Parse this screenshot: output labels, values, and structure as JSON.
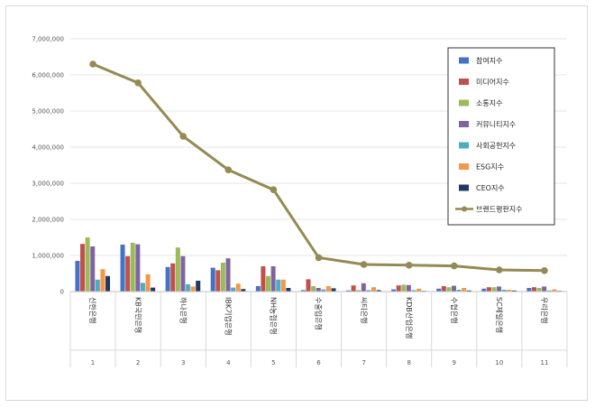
{
  "chart_data": {
    "type": "bar",
    "ylim": [
      0,
      7000000
    ],
    "y_ticks": [
      "0",
      "1,000,000",
      "2,000,000",
      "3,000,000",
      "4,000,000",
      "5,000,000",
      "6,000,000",
      "7,000,000"
    ],
    "categories": [
      "신한은행",
      "KB국민은행",
      "하나은행",
      "IBK기업은행",
      "NH농협은행",
      "수출입은행",
      "씨티은행",
      "KDB산업은행",
      "수협은행",
      "SC제일은행",
      "우리은행"
    ],
    "numbers": [
      "1",
      "2",
      "3",
      "4",
      "5",
      "6",
      "7",
      "8",
      "9",
      "10",
      "11"
    ],
    "legend_position": "top-right",
    "series": [
      {
        "name": "참여지수",
        "color": "#4472c4",
        "kind": "bar",
        "values": [
          850000,
          1300000,
          680000,
          660000,
          150000,
          40000,
          30000,
          60000,
          80000,
          80000,
          100000
        ]
      },
      {
        "name": "미디어지수",
        "color": "#c0504d",
        "kind": "bar",
        "values": [
          1320000,
          980000,
          780000,
          590000,
          700000,
          340000,
          170000,
          170000,
          150000,
          120000,
          120000
        ]
      },
      {
        "name": "소통지수",
        "color": "#9bbb59",
        "kind": "bar",
        "values": [
          1500000,
          1350000,
          1220000,
          800000,
          430000,
          150000,
          40000,
          190000,
          120000,
          120000,
          100000
        ]
      },
      {
        "name": "커뮤니티지수",
        "color": "#8064a2",
        "kind": "bar",
        "values": [
          1250000,
          1310000,
          980000,
          920000,
          700000,
          100000,
          230000,
          180000,
          160000,
          140000,
          140000
        ]
      },
      {
        "name": "사회공헌지수",
        "color": "#4bacc6",
        "kind": "bar",
        "values": [
          330000,
          240000,
          200000,
          110000,
          330000,
          60000,
          40000,
          40000,
          50000,
          50000,
          30000
        ]
      },
      {
        "name": "ESG지수",
        "color": "#f79646",
        "kind": "bar",
        "values": [
          620000,
          480000,
          140000,
          220000,
          330000,
          150000,
          120000,
          80000,
          100000,
          50000,
          60000
        ]
      },
      {
        "name": "CEO지수",
        "color": "#1f3864",
        "kind": "bar",
        "values": [
          430000,
          110000,
          300000,
          70000,
          100000,
          90000,
          40000,
          20000,
          30000,
          30000,
          20000
        ]
      },
      {
        "name": "브랜드평판지수",
        "color": "#948a54",
        "kind": "line",
        "values": [
          6300000,
          5780000,
          4300000,
          3370000,
          2820000,
          940000,
          750000,
          730000,
          710000,
          600000,
          580000
        ]
      }
    ]
  }
}
